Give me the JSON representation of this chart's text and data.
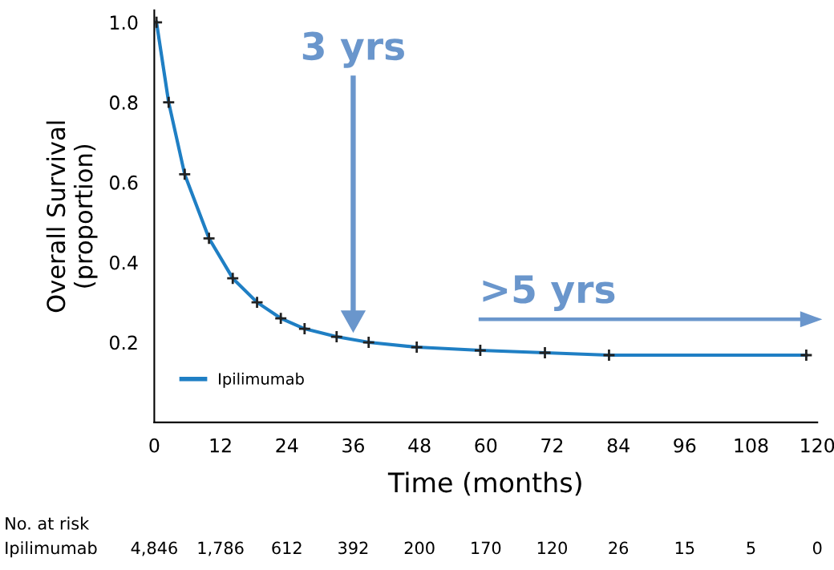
{
  "chart_data": {
    "type": "line",
    "xlabel": "Time (months)",
    "ylabel": "Overall Survival\n(proportion)",
    "xlim": [
      0,
      120
    ],
    "xticks": [
      0,
      12,
      24,
      36,
      48,
      60,
      72,
      84,
      96,
      108,
      120
    ],
    "ylim": [
      0,
      1.03
    ],
    "grid": false,
    "legend": "bottom left",
    "marker": "cross",
    "line_style": "solid",
    "series": [
      {
        "name": "Ipilimumab",
        "color": "#1f7fc4",
        "x": [
          0.4,
          2.6,
          5.5,
          9.9,
          14.2,
          18.6,
          22.9,
          27.2,
          33,
          38.8,
          47.5,
          59,
          70.7,
          82.3,
          118
        ],
        "values": [
          1.0,
          0.8,
          0.62,
          0.46,
          0.36,
          0.3,
          0.26,
          0.234,
          0.214,
          0.2,
          0.188,
          0.18,
          0.174,
          0.168,
          0.168
        ]
      }
    ],
    "yticks": [
      0.2,
      0.4,
      0.6,
      0.8,
      {
        "value": 1.0,
        "label": "1.0"
      }
    ],
    "annotations": [
      "3 yrs",
      ">5 yrs",
      "No. at risk",
      "Ipilimumab",
      "4,846",
      "1,786",
      "612",
      "392",
      "200",
      "170",
      "120",
      "26",
      "15",
      "5",
      "0"
    ]
  }
}
